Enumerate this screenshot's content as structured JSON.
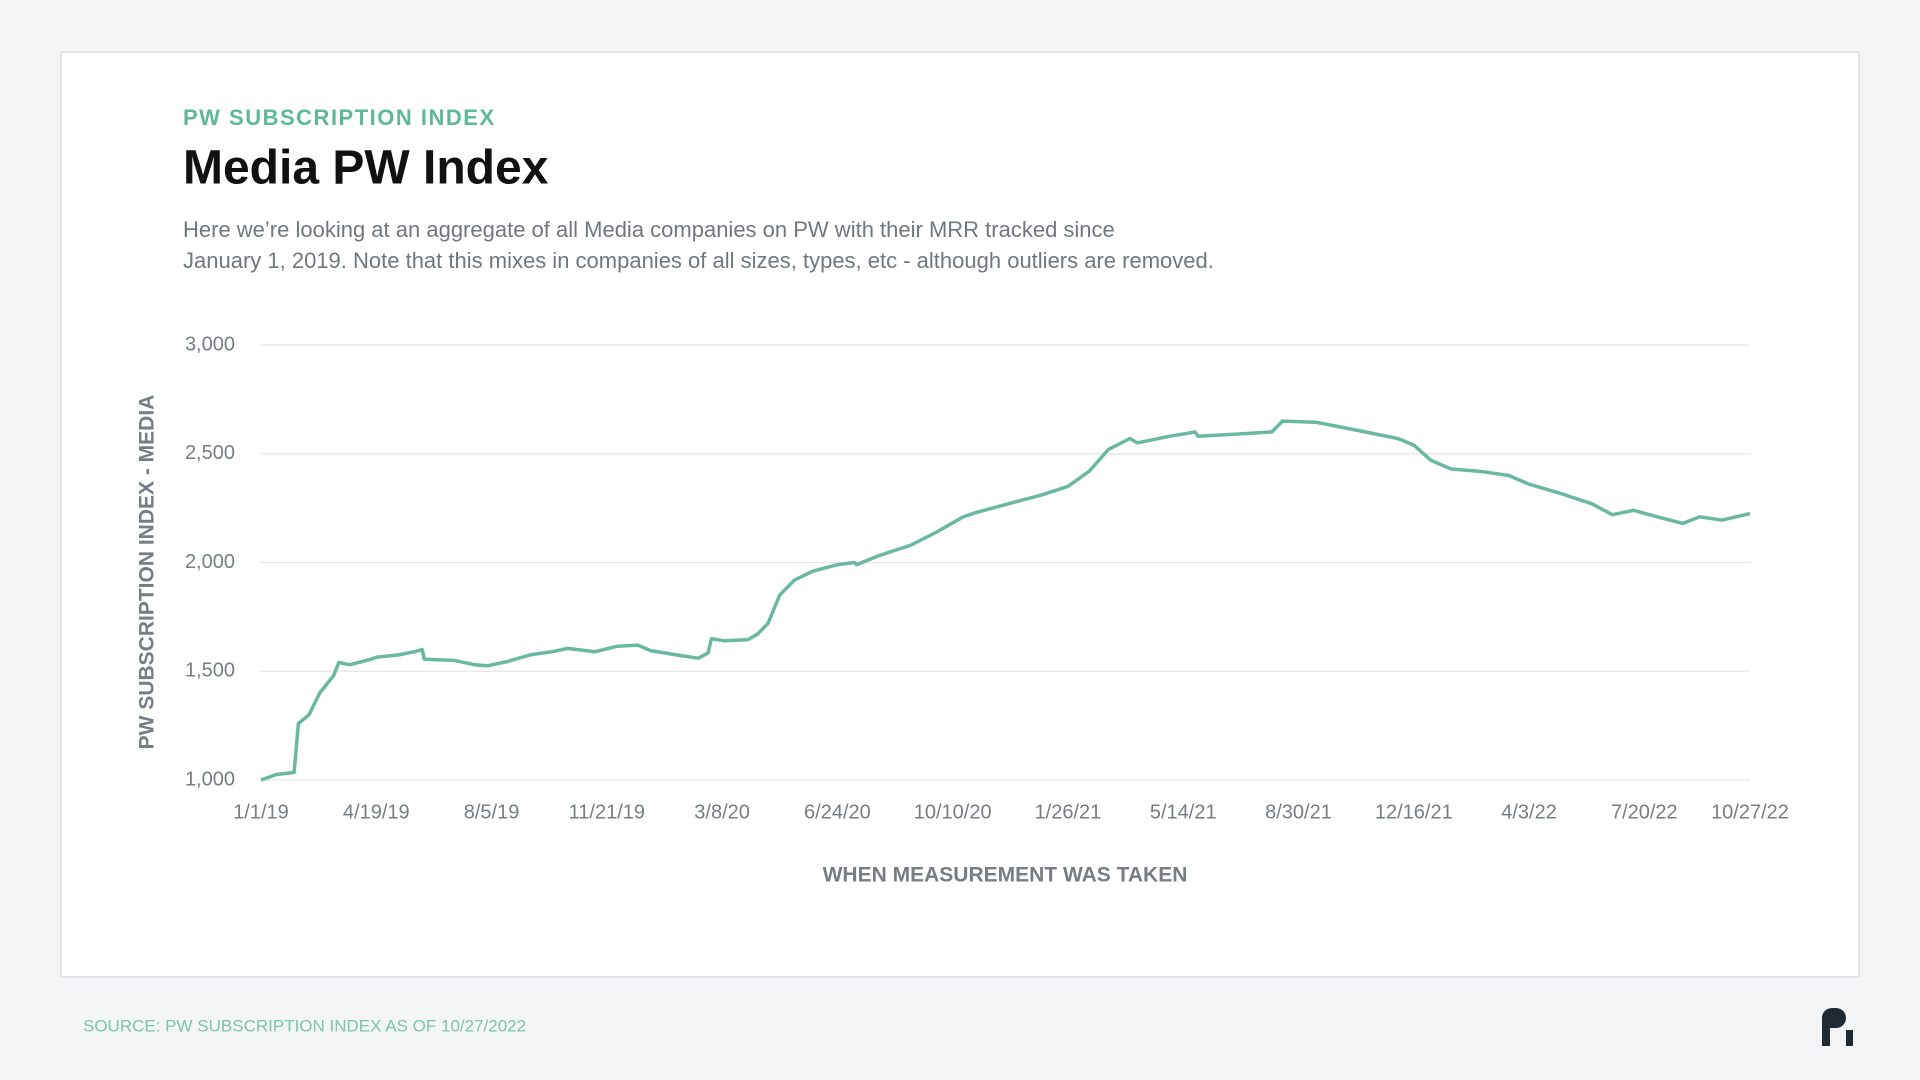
{
  "chart_data": {
    "type": "line",
    "supertitle": "PW SUBSCRIPTION INDEX",
    "title": "Media PW Index",
    "subtitle": [
      "Here we’re looking at an aggregate of all Media companies on PW with their MRR tracked since",
      "January 1, 2019. Note that this mixes in companies of all sizes, types, etc - although outliers are removed."
    ],
    "ylabel": "PW SUBSCRIPTION INDEX - MEDIA",
    "xlabel": "WHEN MEASUREMENT WAS TAKEN",
    "source": "SOURCE: PW SUBSCRIPTION INDEX AS OF 10/27/2022",
    "grid": true,
    "ylim": [
      1000,
      3000
    ],
    "yticks": [
      {
        "value": 1000,
        "label": "1,000"
      },
      {
        "value": 1500,
        "label": "1,500"
      },
      {
        "value": 2000,
        "label": "2,000"
      },
      {
        "value": 2500,
        "label": "2,500"
      },
      {
        "value": 3000,
        "label": "3,000"
      }
    ],
    "xlim": [
      "2019-01-01",
      "2022-10-27"
    ],
    "xticks": [
      {
        "value": "2019-01-01",
        "label": "1/1/19"
      },
      {
        "value": "2019-04-19",
        "label": "4/19/19"
      },
      {
        "value": "2019-08-05",
        "label": "8/5/19"
      },
      {
        "value": "2019-11-21",
        "label": "11/21/19"
      },
      {
        "value": "2020-03-08",
        "label": "3/8/20"
      },
      {
        "value": "2020-06-24",
        "label": "6/24/20"
      },
      {
        "value": "2020-10-10",
        "label": "10/10/20"
      },
      {
        "value": "2021-01-26",
        "label": "1/26/21"
      },
      {
        "value": "2021-05-14",
        "label": "5/14/21"
      },
      {
        "value": "2021-08-30",
        "label": "8/30/21"
      },
      {
        "value": "2021-12-16",
        "label": "12/16/21"
      },
      {
        "value": "2022-04-03",
        "label": "4/3/22"
      },
      {
        "value": "2022-07-20",
        "label": "7/20/22"
      },
      {
        "value": "2022-10-27",
        "label": "10/27/22"
      }
    ],
    "x": [
      "2019-01-01",
      "2019-01-15",
      "2019-02-01",
      "2019-02-05",
      "2019-02-15",
      "2019-02-25",
      "2019-03-10",
      "2019-03-15",
      "2019-03-25",
      "2019-04-10",
      "2019-04-20",
      "2019-05-10",
      "2019-05-25",
      "2019-06-01",
      "2019-06-03",
      "2019-07-01",
      "2019-07-20",
      "2019-08-01",
      "2019-08-20",
      "2019-09-10",
      "2019-10-01",
      "2019-10-15",
      "2019-11-10",
      "2019-12-01",
      "2019-12-20",
      "2020-01-01",
      "2020-01-25",
      "2020-02-15",
      "2020-02-24",
      "2020-02-27",
      "2020-03-10",
      "2020-04-01",
      "2020-04-10",
      "2020-04-20",
      "2020-05-01",
      "2020-05-15",
      "2020-06-01",
      "2020-06-24",
      "2020-07-10",
      "2020-07-12",
      "2020-08-01",
      "2020-09-01",
      "2020-09-25",
      "2020-10-20",
      "2020-11-01",
      "2020-12-01",
      "2021-01-01",
      "2021-01-26",
      "2021-02-15",
      "2021-03-05",
      "2021-03-25",
      "2021-04-01",
      "2021-05-01",
      "2021-05-25",
      "2021-05-28",
      "2021-07-01",
      "2021-08-05",
      "2021-08-15",
      "2021-09-15",
      "2021-10-01",
      "2021-11-01",
      "2021-12-01",
      "2021-12-16",
      "2022-01-01",
      "2022-01-20",
      "2022-02-15",
      "2022-03-15",
      "2022-04-03",
      "2022-05-01",
      "2022-06-01",
      "2022-06-20",
      "2022-07-10",
      "2022-08-01",
      "2022-08-25",
      "2022-09-10",
      "2022-10-01",
      "2022-10-27"
    ],
    "series": [
      {
        "color": "#6bb8a2",
        "values": [
          1000,
          1025,
          1035,
          1260,
          1300,
          1400,
          1480,
          1540,
          1530,
          1550,
          1565,
          1575,
          1590,
          1600,
          1555,
          1550,
          1530,
          1525,
          1545,
          1575,
          1590,
          1605,
          1590,
          1615,
          1620,
          1595,
          1575,
          1560,
          1585,
          1650,
          1640,
          1645,
          1670,
          1720,
          1850,
          1920,
          1960,
          1990,
          2000,
          1990,
          2030,
          2080,
          2140,
          2210,
          2230,
          2270,
          2310,
          2350,
          2420,
          2520,
          2570,
          2550,
          2580,
          2600,
          2580,
          2590,
          2600,
          2650,
          2645,
          2630,
          2600,
          2570,
          2540,
          2470,
          2430,
          2420,
          2400,
          2360,
          2320,
          2270,
          2220,
          2240,
          2210,
          2180,
          2210,
          2195,
          2225
        ]
      }
    ]
  }
}
